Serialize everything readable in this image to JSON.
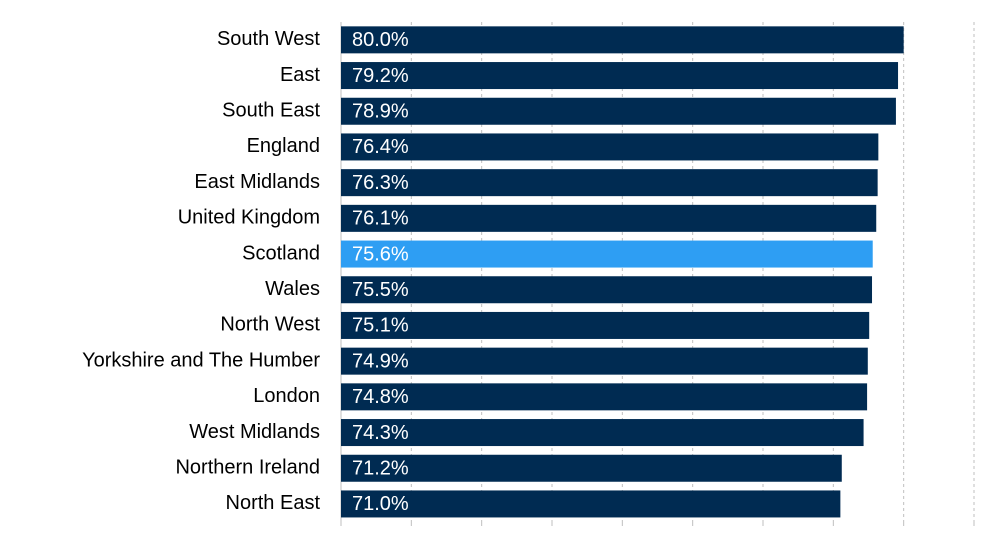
{
  "chart_data": {
    "type": "bar",
    "orientation": "horizontal",
    "title": "",
    "xlabel": "",
    "ylabel": "",
    "categories": [
      "South West",
      "East",
      "South East",
      "England",
      "East Midlands",
      "United Kingdom",
      "Scotland",
      "Wales",
      "North West",
      "Yorkshire and The Humber",
      "London",
      "West Midlands",
      "Northern Ireland",
      "North East"
    ],
    "values": [
      80.0,
      79.2,
      78.9,
      76.4,
      76.3,
      76.1,
      75.6,
      75.5,
      75.1,
      74.9,
      74.8,
      74.3,
      71.2,
      71.0
    ],
    "value_labels": [
      "80.0%",
      "79.2%",
      "78.9%",
      "76.4%",
      "76.3%",
      "76.1%",
      "75.6%",
      "75.5%",
      "75.1%",
      "74.9%",
      "74.8%",
      "74.3%",
      "71.2%",
      "71.0%"
    ],
    "highlight_category": "Scotland",
    "xlim": [
      0,
      90
    ],
    "grid": true,
    "legend": "none",
    "colors": {
      "bar": "#002b52",
      "highlight": "#2e9ef3",
      "grid": "#bfbfbf",
      "axis": "#bfbfbf"
    }
  }
}
